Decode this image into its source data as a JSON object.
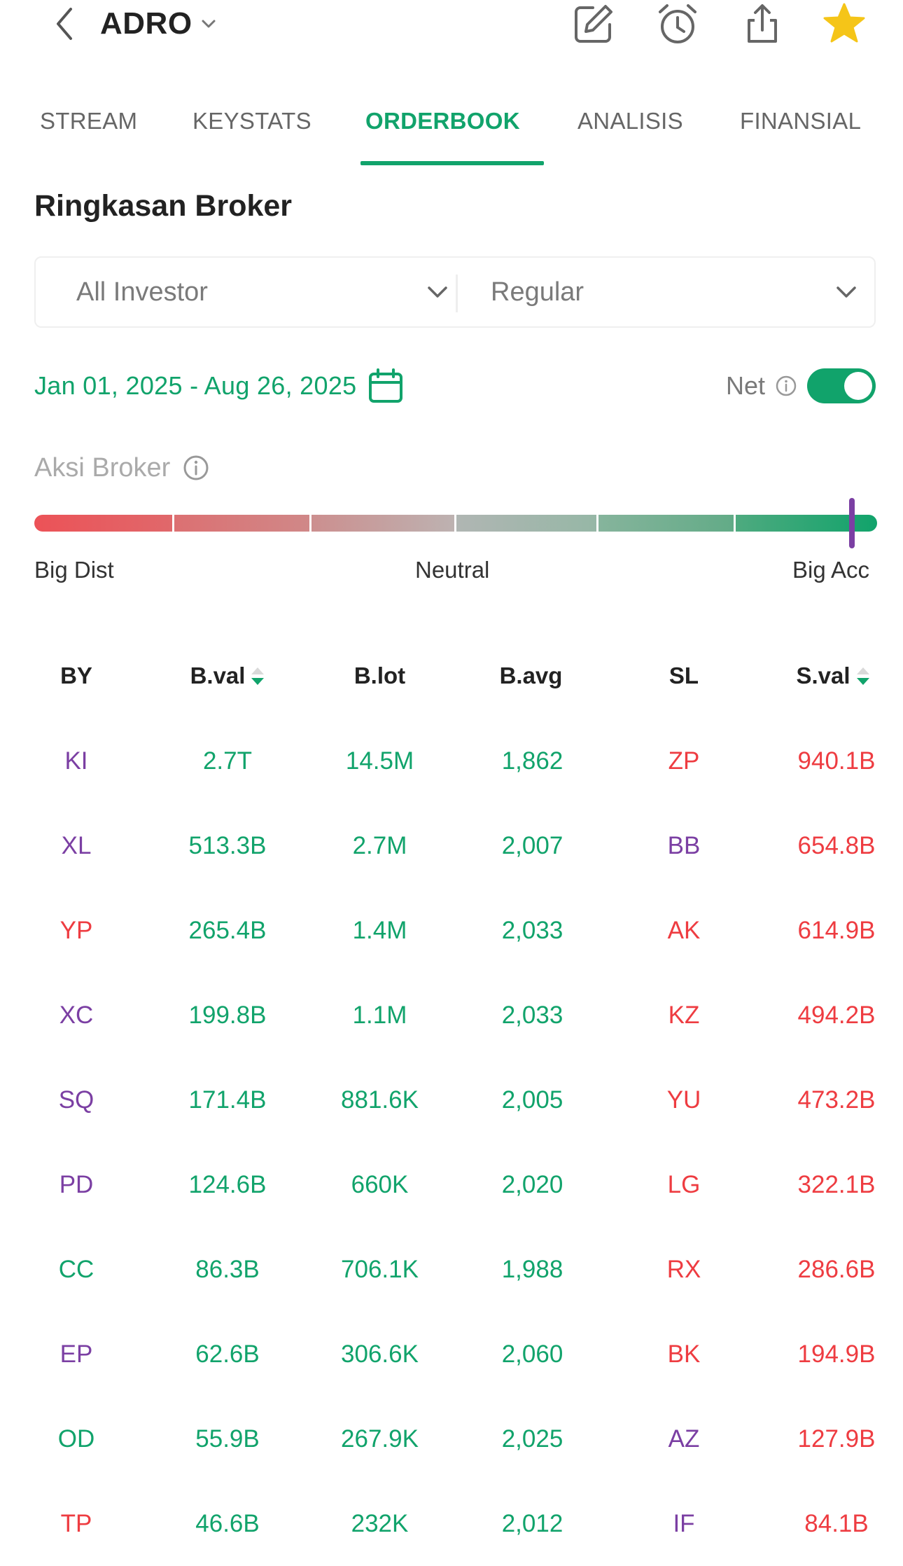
{
  "header": {
    "ticker": "ADRO",
    "icons": [
      "back-chevron-icon",
      "chevron-down-icon",
      "edit-icon",
      "alarm-clock-icon",
      "share-icon",
      "star-icon"
    ]
  },
  "tabs": [
    {
      "label": "STREAM",
      "active": false
    },
    {
      "label": "KEYSTATS",
      "active": false
    },
    {
      "label": "ORDERBOOK",
      "active": true
    },
    {
      "label": "ANALISIS",
      "active": false
    },
    {
      "label": "FINANSIAL",
      "active": false
    }
  ],
  "section_title": "Ringkasan Broker",
  "filters": {
    "investor": "All Investor",
    "market": "Regular"
  },
  "date_range": "Jan 01, 2025 - Aug 26, 2025",
  "net": {
    "label": "Net",
    "enabled": true
  },
  "aksi_broker": {
    "label": "Aksi Broker",
    "level": 0.98,
    "left_label": "Big Dist",
    "mid_label": "Neutral",
    "right_label": "Big Acc"
  },
  "colors": {
    "accent_green": "#11a36b",
    "sell_red": "#ee3c41",
    "foreign_purple": "#7b3fa3"
  },
  "table": {
    "headers": {
      "by": "BY",
      "bval": "B.val",
      "blot": "B.lot",
      "bavg": "B.avg",
      "sl": "SL",
      "sval": "S.val"
    },
    "rows": [
      {
        "by": "KI",
        "by_color": "purple",
        "bval": "2.7T",
        "blot": "14.5M",
        "bavg": "1,862",
        "sl": "ZP",
        "sl_color": "red",
        "sval": "940.1B"
      },
      {
        "by": "XL",
        "by_color": "purple",
        "bval": "513.3B",
        "blot": "2.7M",
        "bavg": "2,007",
        "sl": "BB",
        "sl_color": "purple",
        "sval": "654.8B"
      },
      {
        "by": "YP",
        "by_color": "red",
        "bval": "265.4B",
        "blot": "1.4M",
        "bavg": "2,033",
        "sl": "AK",
        "sl_color": "red",
        "sval": "614.9B"
      },
      {
        "by": "XC",
        "by_color": "purple",
        "bval": "199.8B",
        "blot": "1.1M",
        "bavg": "2,033",
        "sl": "KZ",
        "sl_color": "red",
        "sval": "494.2B"
      },
      {
        "by": "SQ",
        "by_color": "purple",
        "bval": "171.4B",
        "blot": "881.6K",
        "bavg": "2,005",
        "sl": "YU",
        "sl_color": "red",
        "sval": "473.2B"
      },
      {
        "by": "PD",
        "by_color": "purple",
        "bval": "124.6B",
        "blot": "660K",
        "bavg": "2,020",
        "sl": "LG",
        "sl_color": "red",
        "sval": "322.1B"
      },
      {
        "by": "CC",
        "by_color": "green",
        "bval": "86.3B",
        "blot": "706.1K",
        "bavg": "1,988",
        "sl": "RX",
        "sl_color": "red",
        "sval": "286.6B"
      },
      {
        "by": "EP",
        "by_color": "purple",
        "bval": "62.6B",
        "blot": "306.6K",
        "bavg": "2,060",
        "sl": "BK",
        "sl_color": "red",
        "sval": "194.9B"
      },
      {
        "by": "OD",
        "by_color": "green",
        "bval": "55.9B",
        "blot": "267.9K",
        "bavg": "2,025",
        "sl": "AZ",
        "sl_color": "purple",
        "sval": "127.9B"
      },
      {
        "by": "TP",
        "by_color": "red",
        "bval": "46.6B",
        "blot": "232K",
        "bavg": "2,012",
        "sl": "IF",
        "sl_color": "purple",
        "sval": "84.1B"
      }
    ]
  }
}
